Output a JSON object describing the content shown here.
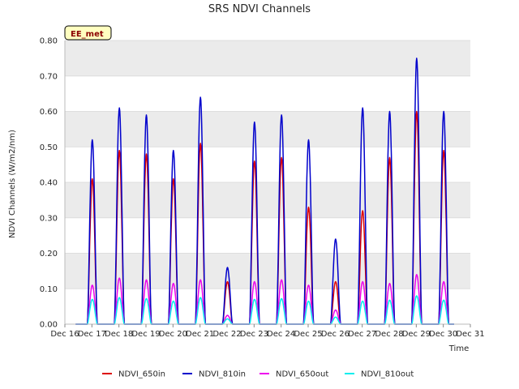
{
  "chart_data": {
    "type": "line",
    "title": "SRS NDVI Channels",
    "badge": "EE_met",
    "xlabel": "Time",
    "ylabel": "NDVI Channels (W/m2/nm)",
    "x_ticks": [
      "Dec 16",
      "Dec 17",
      "Dec 18",
      "Dec 19",
      "Dec 20",
      "Dec 21",
      "Dec 22",
      "Dec 23",
      "Dec 24",
      "Dec 25",
      "Dec 26",
      "Dec 27",
      "Dec 28",
      "Dec 29",
      "Dec 30",
      "Dec 31"
    ],
    "xlim": [
      16,
      31
    ],
    "y_ticks": [
      "0.00",
      "0.10",
      "0.20",
      "0.30",
      "0.40",
      "0.50",
      "0.60",
      "0.70",
      "0.80"
    ],
    "ylim": [
      0,
      0.8
    ],
    "grid": true,
    "legend_position": "bottom",
    "daylight_window": [
      0.33,
      0.7
    ],
    "series": [
      {
        "name": "NDVI_650in",
        "color": "#dd0000",
        "peaks": [
          0.41,
          0.49,
          0.48,
          0.41,
          0.51,
          0.12,
          0.46,
          0.47,
          0.33,
          0.12,
          0.32,
          0.47,
          0.6,
          0.49
        ]
      },
      {
        "name": "NDVI_810in",
        "color": "#0000cc",
        "peaks": [
          0.52,
          0.61,
          0.59,
          0.49,
          0.64,
          0.16,
          0.57,
          0.59,
          0.52,
          0.24,
          0.61,
          0.6,
          0.75,
          0.6
        ]
      },
      {
        "name": "NDVI_650out",
        "color": "#ee00ee",
        "peaks": [
          0.11,
          0.13,
          0.125,
          0.115,
          0.125,
          0.025,
          0.12,
          0.125,
          0.11,
          0.04,
          0.12,
          0.115,
          0.14,
          0.12
        ]
      },
      {
        "name": "NDVI_810out",
        "color": "#00eeee",
        "peaks": [
          0.07,
          0.075,
          0.072,
          0.065,
          0.075,
          0.015,
          0.07,
          0.072,
          0.065,
          0.02,
          0.065,
          0.068,
          0.08,
          0.068
        ]
      }
    ]
  }
}
